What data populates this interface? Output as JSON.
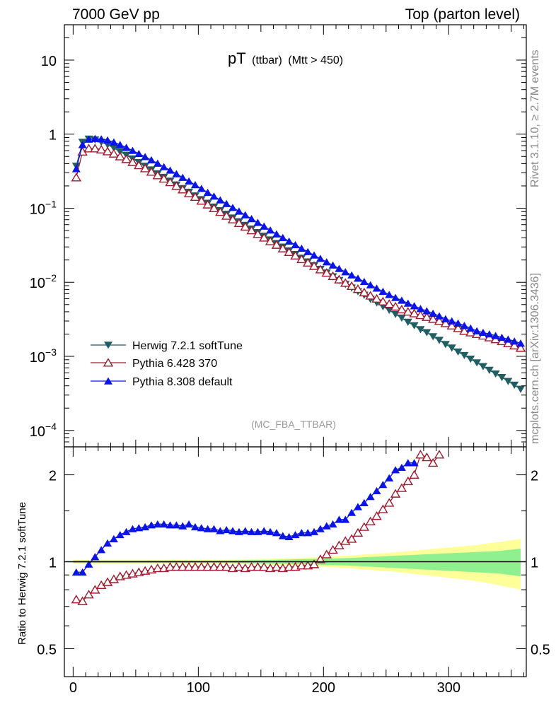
{
  "header": {
    "left": "7000 GeV pp",
    "right": "Top (parton level)"
  },
  "title": {
    "main": "pT",
    "sub": "(ttbar)",
    "cut": "(Mtt > 450)"
  },
  "watermark": "(MC_FBA_TTBAR)",
  "side_labels": {
    "rivet": "Rivet 3.1.10, ≥ 2.7M events",
    "mcplots": "mcplots.cern.ch [arXiv:1306.3436]"
  },
  "ratio_ylabel": "Ratio to Herwig 7.2.1 softTune",
  "main_yticks": [
    {
      "v": 10,
      "mant": "10",
      "exp": ""
    },
    {
      "v": 1,
      "mant": "1",
      "exp": ""
    },
    {
      "v": 0.1,
      "mant": "10",
      "exp": "−1"
    },
    {
      "v": 0.01,
      "mant": "10",
      "exp": "−2"
    },
    {
      "v": 0.001,
      "mant": "10",
      "exp": "−3"
    },
    {
      "v": 0.0001,
      "mant": "10",
      "exp": "−4"
    }
  ],
  "ratio_yticks": [
    "2",
    "1",
    "0.5"
  ],
  "xticks": [
    "0",
    "100",
    "200",
    "300"
  ],
  "colors": {
    "herwig": "#1f5e62",
    "pythia6": "#a0192d",
    "pythia8": "#0a14e6",
    "band_inner": "#90f090",
    "band_outer": "#ffff99"
  },
  "chart_data": [
    {
      "type": "scatter",
      "panel": "main",
      "x_range": [
        -7,
        362
      ],
      "y_range_log": [
        6e-05,
        30
      ],
      "y_scale": "log",
      "legend_placement": "lower-left",
      "series": [
        {
          "name": "Herwig 7.2.1 softTune",
          "marker": "triangle-down",
          "x": [
            2.5,
            7.5,
            12.5,
            17.5,
            22.5,
            27.5,
            32.5,
            37.5,
            42.5,
            47.5,
            52.5,
            57.5,
            62.5,
            67.5,
            72.5,
            77.5,
            82.5,
            87.5,
            92.5,
            97.5,
            102.5,
            107.5,
            112.5,
            117.5,
            122.5,
            127.5,
            132.5,
            137.5,
            142.5,
            147.5,
            152.5,
            157.5,
            162.5,
            167.5,
            172.5,
            177.5,
            182.5,
            187.5,
            192.5,
            197.5,
            202.5,
            207.5,
            212.5,
            217.5,
            222.5,
            227.5,
            232.5,
            237.5,
            242.5,
            247.5,
            252.5,
            257.5,
            262.5,
            267.5,
            272.5,
            277.5,
            282.5,
            287.5,
            292.5,
            297.5,
            302.5,
            307.5,
            312.5,
            317.5,
            322.5,
            327.5,
            332.5,
            337.5,
            342.5,
            347.5,
            352.5,
            357.5
          ],
          "y": [
            0.37,
            0.78,
            0.86,
            0.84,
            0.78,
            0.72,
            0.65,
            0.58,
            0.52,
            0.465,
            0.415,
            0.37,
            0.33,
            0.293,
            0.262,
            0.233,
            0.207,
            0.185,
            0.165,
            0.147,
            0.131,
            0.117,
            0.104,
            0.093,
            0.083,
            0.074,
            0.066,
            0.059,
            0.0525,
            0.047,
            0.042,
            0.0375,
            0.0335,
            0.03,
            0.0267,
            0.0238,
            0.0212,
            0.0189,
            0.0168,
            0.015,
            0.0134,
            0.0119,
            0.0106,
            0.0094,
            0.0084,
            0.0075,
            0.0067,
            0.0059,
            0.0053,
            0.0047,
            0.0042,
            0.0037,
            0.0033,
            0.0029,
            0.0026,
            0.0023,
            0.0021,
            0.00185,
            0.00165,
            0.00145,
            0.0013,
            0.00115,
            0.00103,
            0.00092,
            0.00082,
            0.00073,
            0.00065,
            0.00058,
            0.00052,
            0.00046,
            0.00041,
            0.00036
          ]
        },
        {
          "name": "Pythia 6.428 370",
          "marker": "triangle-up-open",
          "x": [
            2.5,
            7.5,
            12.5,
            17.5,
            22.5,
            27.5,
            32.5,
            37.5,
            42.5,
            47.5,
            52.5,
            57.5,
            62.5,
            67.5,
            72.5,
            77.5,
            82.5,
            87.5,
            92.5,
            97.5,
            102.5,
            107.5,
            112.5,
            117.5,
            122.5,
            127.5,
            132.5,
            137.5,
            142.5,
            147.5,
            152.5,
            157.5,
            162.5,
            167.5,
            172.5,
            177.5,
            182.5,
            187.5,
            192.5,
            197.5,
            202.5,
            207.5,
            212.5,
            217.5,
            222.5,
            227.5,
            232.5,
            237.5,
            242.5,
            247.5,
            252.5,
            257.5,
            262.5,
            267.5,
            272.5,
            277.5,
            282.5,
            287.5,
            292.5,
            297.5,
            302.5,
            307.5,
            312.5,
            317.5,
            322.5,
            327.5,
            332.5,
            337.5,
            342.5,
            347.5,
            352.5,
            357.5
          ],
          "y": [
            0.26,
            0.58,
            0.64,
            0.64,
            0.62,
            0.585,
            0.545,
            0.5,
            0.46,
            0.42,
            0.38,
            0.345,
            0.31,
            0.278,
            0.25,
            0.224,
            0.2,
            0.179,
            0.159,
            0.142,
            0.126,
            0.112,
            0.1,
            0.089,
            0.079,
            0.0705,
            0.063,
            0.0562,
            0.0502,
            0.0448,
            0.04,
            0.0358,
            0.032,
            0.0286,
            0.0256,
            0.0229,
            0.0205,
            0.0184,
            0.0166,
            0.0149,
            0.0134,
            0.0121,
            0.0109,
            0.0098,
            0.0089,
            0.0081,
            0.0073,
            0.0066,
            0.006,
            0.0055,
            0.0051,
            0.0047,
            0.0043,
            0.004,
            0.0038,
            0.0036,
            0.0034,
            0.0032,
            0.003,
            0.0028,
            0.0026,
            0.0024,
            0.0022,
            0.0021,
            0.002,
            0.0019,
            0.0018,
            0.0017,
            0.0016,
            0.0015,
            0.0014,
            0.0013
          ]
        },
        {
          "name": "Pythia 8.308 default",
          "marker": "triangle-up",
          "x": [
            2.5,
            7.5,
            12.5,
            17.5,
            22.5,
            27.5,
            32.5,
            37.5,
            42.5,
            47.5,
            52.5,
            57.5,
            62.5,
            67.5,
            72.5,
            77.5,
            82.5,
            87.5,
            92.5,
            97.5,
            102.5,
            107.5,
            112.5,
            117.5,
            122.5,
            127.5,
            132.5,
            137.5,
            142.5,
            147.5,
            152.5,
            157.5,
            162.5,
            167.5,
            172.5,
            177.5,
            182.5,
            187.5,
            192.5,
            197.5,
            202.5,
            207.5,
            212.5,
            217.5,
            222.5,
            227.5,
            232.5,
            237.5,
            242.5,
            247.5,
            252.5,
            257.5,
            262.5,
            267.5,
            272.5,
            277.5,
            282.5,
            287.5,
            292.5,
            297.5,
            302.5,
            307.5,
            312.5,
            317.5,
            322.5,
            327.5,
            332.5,
            337.5,
            342.5,
            347.5,
            352.5,
            357.5
          ],
          "y": [
            0.34,
            0.72,
            0.85,
            0.87,
            0.86,
            0.83,
            0.78,
            0.72,
            0.66,
            0.6,
            0.545,
            0.495,
            0.448,
            0.403,
            0.362,
            0.325,
            0.291,
            0.26,
            0.232,
            0.207,
            0.184,
            0.163,
            0.145,
            0.129,
            0.115,
            0.102,
            0.091,
            0.081,
            0.072,
            0.064,
            0.057,
            0.0505,
            0.0448,
            0.04,
            0.0358,
            0.032,
            0.0287,
            0.0258,
            0.0232,
            0.0209,
            0.0188,
            0.017,
            0.0153,
            0.0138,
            0.0125,
            0.0113,
            0.0102,
            0.0092,
            0.0083,
            0.0075,
            0.0068,
            0.0062,
            0.0057,
            0.0052,
            0.0048,
            0.0044,
            0.0041,
            0.0038,
            0.0035,
            0.0032,
            0.003,
            0.0028,
            0.0026,
            0.0024,
            0.0022,
            0.0021,
            0.002,
            0.0019,
            0.0018,
            0.0017,
            0.0016,
            0.0015
          ]
        }
      ]
    },
    {
      "type": "scatter",
      "panel": "ratio",
      "x_range": [
        -7,
        362
      ],
      "y_range_log": [
        0.4,
        2.5
      ],
      "y_scale": "log",
      "reference_line": 1,
      "series": [
        {
          "name": "Pythia 6.428 370",
          "marker": "triangle-up-open",
          "x": [
            2.5,
            7.5,
            12.5,
            17.5,
            22.5,
            27.5,
            32.5,
            37.5,
            42.5,
            47.5,
            52.5,
            57.5,
            62.5,
            67.5,
            72.5,
            77.5,
            82.5,
            87.5,
            92.5,
            97.5,
            102.5,
            107.5,
            112.5,
            117.5,
            122.5,
            127.5,
            132.5,
            137.5,
            142.5,
            147.5,
            152.5,
            157.5,
            162.5,
            167.5,
            172.5,
            177.5,
            182.5,
            187.5,
            192.5,
            197.5,
            202.5,
            207.5,
            212.5,
            217.5,
            222.5,
            227.5,
            232.5,
            237.5,
            242.5,
            247.5,
            252.5,
            257.5,
            262.5,
            267.5,
            272.5,
            277.5,
            282.5,
            287.5,
            292.5
          ],
          "y": [
            0.74,
            0.73,
            0.77,
            0.8,
            0.83,
            0.85,
            0.87,
            0.89,
            0.9,
            0.91,
            0.92,
            0.93,
            0.94,
            0.95,
            0.95,
            0.96,
            0.96,
            0.96,
            0.96,
            0.96,
            0.96,
            0.96,
            0.96,
            0.96,
            0.96,
            0.95,
            0.96,
            0.95,
            0.96,
            0.96,
            0.96,
            0.95,
            0.96,
            0.95,
            0.96,
            0.96,
            0.97,
            0.97,
            0.98,
            1.02,
            1.06,
            1.1,
            1.14,
            1.18,
            1.2,
            1.26,
            1.32,
            1.38,
            1.44,
            1.52,
            1.6,
            1.72,
            1.8,
            1.9,
            2.0,
            2.35,
            2.3,
            2.2,
            2.35
          ]
        },
        {
          "name": "Pythia 8.308 default",
          "marker": "triangle-up",
          "x": [
            2.5,
            7.5,
            12.5,
            17.5,
            22.5,
            27.5,
            32.5,
            37.5,
            42.5,
            47.5,
            52.5,
            57.5,
            62.5,
            67.5,
            72.5,
            77.5,
            82.5,
            87.5,
            92.5,
            97.5,
            102.5,
            107.5,
            112.5,
            117.5,
            122.5,
            127.5,
            132.5,
            137.5,
            142.5,
            147.5,
            152.5,
            157.5,
            162.5,
            167.5,
            172.5,
            177.5,
            182.5,
            187.5,
            192.5,
            197.5,
            202.5,
            207.5,
            212.5,
            217.5,
            222.5,
            227.5,
            232.5,
            237.5,
            242.5,
            247.5,
            252.5,
            257.5,
            262.5,
            267.5,
            272.5
          ],
          "y": [
            0.92,
            0.92,
            0.98,
            1.04,
            1.1,
            1.16,
            1.2,
            1.24,
            1.27,
            1.3,
            1.31,
            1.32,
            1.34,
            1.35,
            1.35,
            1.34,
            1.34,
            1.33,
            1.35,
            1.32,
            1.31,
            1.3,
            1.3,
            1.28,
            1.29,
            1.28,
            1.27,
            1.28,
            1.27,
            1.27,
            1.28,
            1.27,
            1.26,
            1.23,
            1.22,
            1.24,
            1.26,
            1.26,
            1.27,
            1.3,
            1.33,
            1.35,
            1.4,
            1.4,
            1.48,
            1.55,
            1.6,
            1.68,
            1.76,
            1.85,
            1.95,
            2.08,
            2.12,
            2.2,
            2.2
          ]
        }
      ],
      "uncertainty_band": {
        "x": [
          0,
          20,
          40,
          60,
          80,
          100,
          120,
          140,
          160,
          180,
          200,
          220,
          240,
          260,
          280,
          300,
          320,
          340,
          357.5
        ],
        "inner_half_width": [
          0.01,
          0.01,
          0.01,
          0.01,
          0.01,
          0.01,
          0.01,
          0.012,
          0.015,
          0.02,
          0.025,
          0.03,
          0.04,
          0.05,
          0.06,
          0.07,
          0.08,
          0.09,
          0.11
        ],
        "outer_half_width": [
          0.015,
          0.015,
          0.015,
          0.015,
          0.015,
          0.015,
          0.015,
          0.02,
          0.025,
          0.03,
          0.04,
          0.05,
          0.065,
          0.08,
          0.1,
          0.12,
          0.14,
          0.17,
          0.2
        ]
      }
    }
  ]
}
